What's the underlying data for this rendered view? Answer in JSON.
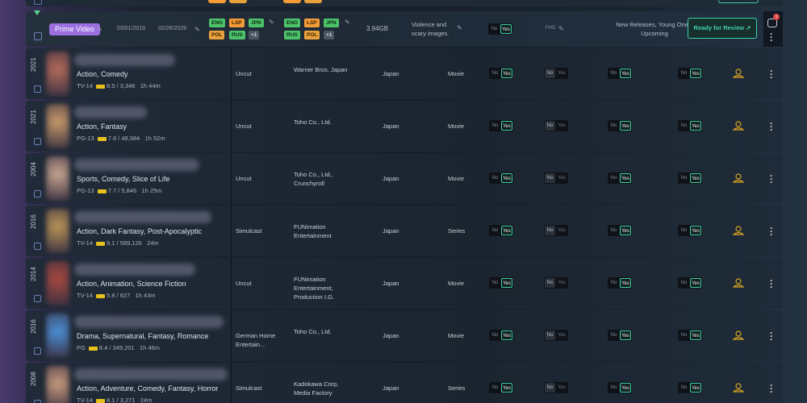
{
  "expanded": {
    "provider": "Prime Video",
    "start_date": "03/01/2019",
    "end_date": "02/26/2029",
    "audio_langs": [
      "ENG",
      "LSP",
      "JPN",
      "POL",
      "RUS",
      "+1"
    ],
    "sub_langs": [
      "ENG",
      "LSP",
      "JPN",
      "RUS",
      "POL",
      "+1"
    ],
    "file_size": "3.94GB",
    "advisory": "Violence and scary images.",
    "toggle_no": "No",
    "toggle_yes": "Yes",
    "quality": "FHD",
    "collections": "New Releases, Young Ones, Upcoming",
    "review_button": "Ready for Review ↗",
    "message_count": "1"
  },
  "toggle_labels": {
    "no": "No",
    "yes": "Yes"
  },
  "rows": [
    {
      "year": "2021",
      "genre": "Action, Comedy",
      "rating": "TV-14",
      "score": "8.5 / 3,346",
      "runtime": "1h 44m",
      "type": "Uncut",
      "studio": "Warner Bros. Japan",
      "country": "Japan",
      "format": "Movie",
      "t1": "yes",
      "t2": "no",
      "t3": "yes",
      "t4": "yes",
      "poster_color": "#b46a5a",
      "title_w": 125
    },
    {
      "year": "2021",
      "genre": "Action, Fantasy",
      "rating": "PG-13",
      "score": "7.8 / 48,984",
      "runtime": "1h 52m",
      "type": "Uncut",
      "studio": "Toho Co., Ltd.",
      "country": "Japan",
      "format": "Movie",
      "t1": "yes",
      "t2": "no",
      "t3": "yes",
      "t4": "yes",
      "poster_color": "#c89a6a",
      "title_w": 90
    },
    {
      "year": "2004",
      "genre": "Sports, Comedy, Slice of Life",
      "rating": "PG-13",
      "score": "7.7 / 5,846",
      "runtime": "1h 25m",
      "type": "Uncut",
      "studio": "Toho Co., Ltd., Crunchyroll",
      "country": "Japan",
      "format": "Movie",
      "t1": "yes",
      "t2": "no",
      "t3": "yes",
      "t4": "yes",
      "poster_color": "#c7a58f",
      "title_w": 155
    },
    {
      "year": "2016",
      "genre": "Action, Dark Fantasy, Post-Apocalyptic",
      "rating": "TV-14",
      "score": "9.1 / 589,126",
      "runtime": "24m",
      "type": "Simulcast",
      "studio": "FUNimation Entertainment",
      "country": "Japan",
      "format": "Series",
      "t1": "yes",
      "t2": "no",
      "t3": "yes",
      "t4": "yes",
      "poster_color": "#b89455",
      "title_w": 170
    },
    {
      "year": "2014",
      "genre": "Action, Animation, Science Fiction",
      "rating": "TV-14",
      "score": "5.8 / 627",
      "runtime": "1h 43m",
      "type": "Uncut",
      "studio": "FUNimation Entertainment, Production I.G.",
      "country": "Japan",
      "format": "Movie",
      "t1": "yes",
      "t2": "no",
      "t3": "yes",
      "t4": "yes",
      "poster_color": "#a5483e",
      "title_w": 150
    },
    {
      "year": "2016",
      "genre": "Drama, Supernatural, Fantasy, Romance",
      "rating": "PG",
      "score": "8.4 / 349,201",
      "runtime": "1h 46m",
      "type": "German Home Entertain...",
      "studio": "Toho Co., Ltd.",
      "country": "Japan",
      "format": "Movie",
      "t1": "yes",
      "t2": "no",
      "t3": "yes",
      "t4": "yes",
      "poster_color": "#4a8fd6",
      "title_w": 185
    },
    {
      "year": "2008",
      "genre": "Action, Adventure, Comedy, Fantasy, Horror",
      "rating": "TV-14",
      "score": "8.1 / 3,271",
      "runtime": "24m",
      "type": "Simulcast",
      "studio": "Kadokawa Corp, Media Factory",
      "country": "Japan",
      "format": "Series",
      "t1": "yes",
      "t2": "no",
      "t3": "yes",
      "t4": "yes",
      "poster_color": "#c69a7c",
      "title_w": 190
    }
  ],
  "colors": {
    "accent": "#3ecfa8",
    "prime": "#9b6fe0",
    "imdb": "#e8c21c",
    "award": "#d9a521"
  },
  "icons": {
    "edit": "pencil-icon",
    "award": "award-icon",
    "more": "kebab-icon",
    "message": "message-icon"
  }
}
